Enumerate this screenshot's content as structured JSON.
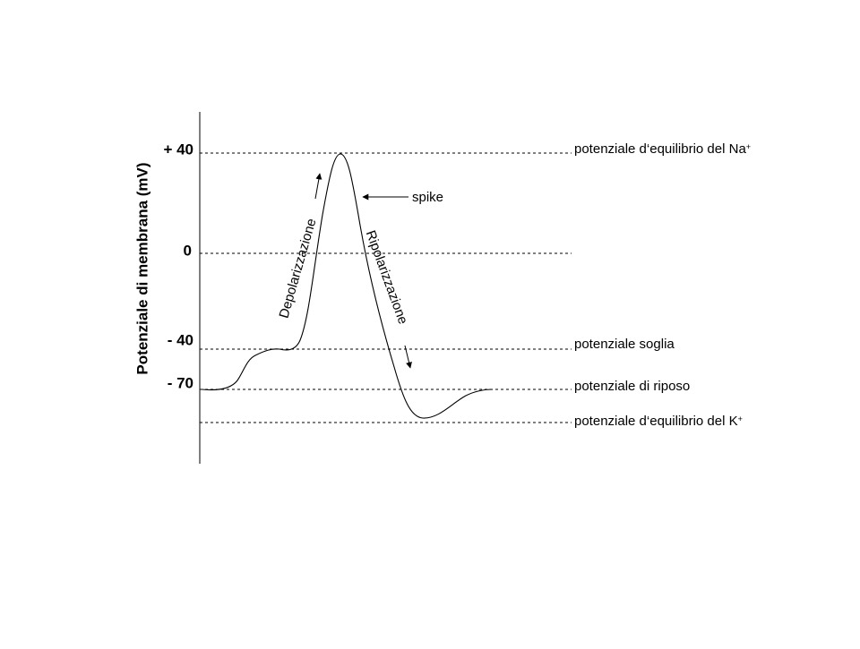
{
  "axis_label": "Potenziale di membrana (mV)",
  "ticks": [
    "+ 40",
    "0",
    "- 40",
    "- 70"
  ],
  "levels": [
    {
      "label": "potenziale d‘equilibrio del Na",
      "sup": "+"
    },
    {
      "label": "potenziale soglia"
    },
    {
      "label": "potenziale di riposo"
    },
    {
      "label": "potenziale d‘equilibrio del K",
      "sup": "+"
    }
  ],
  "annotations": {
    "spike": "spike",
    "depolarization": "Depolarizzazione",
    "repolarization": "Ripolarizzazione"
  }
}
